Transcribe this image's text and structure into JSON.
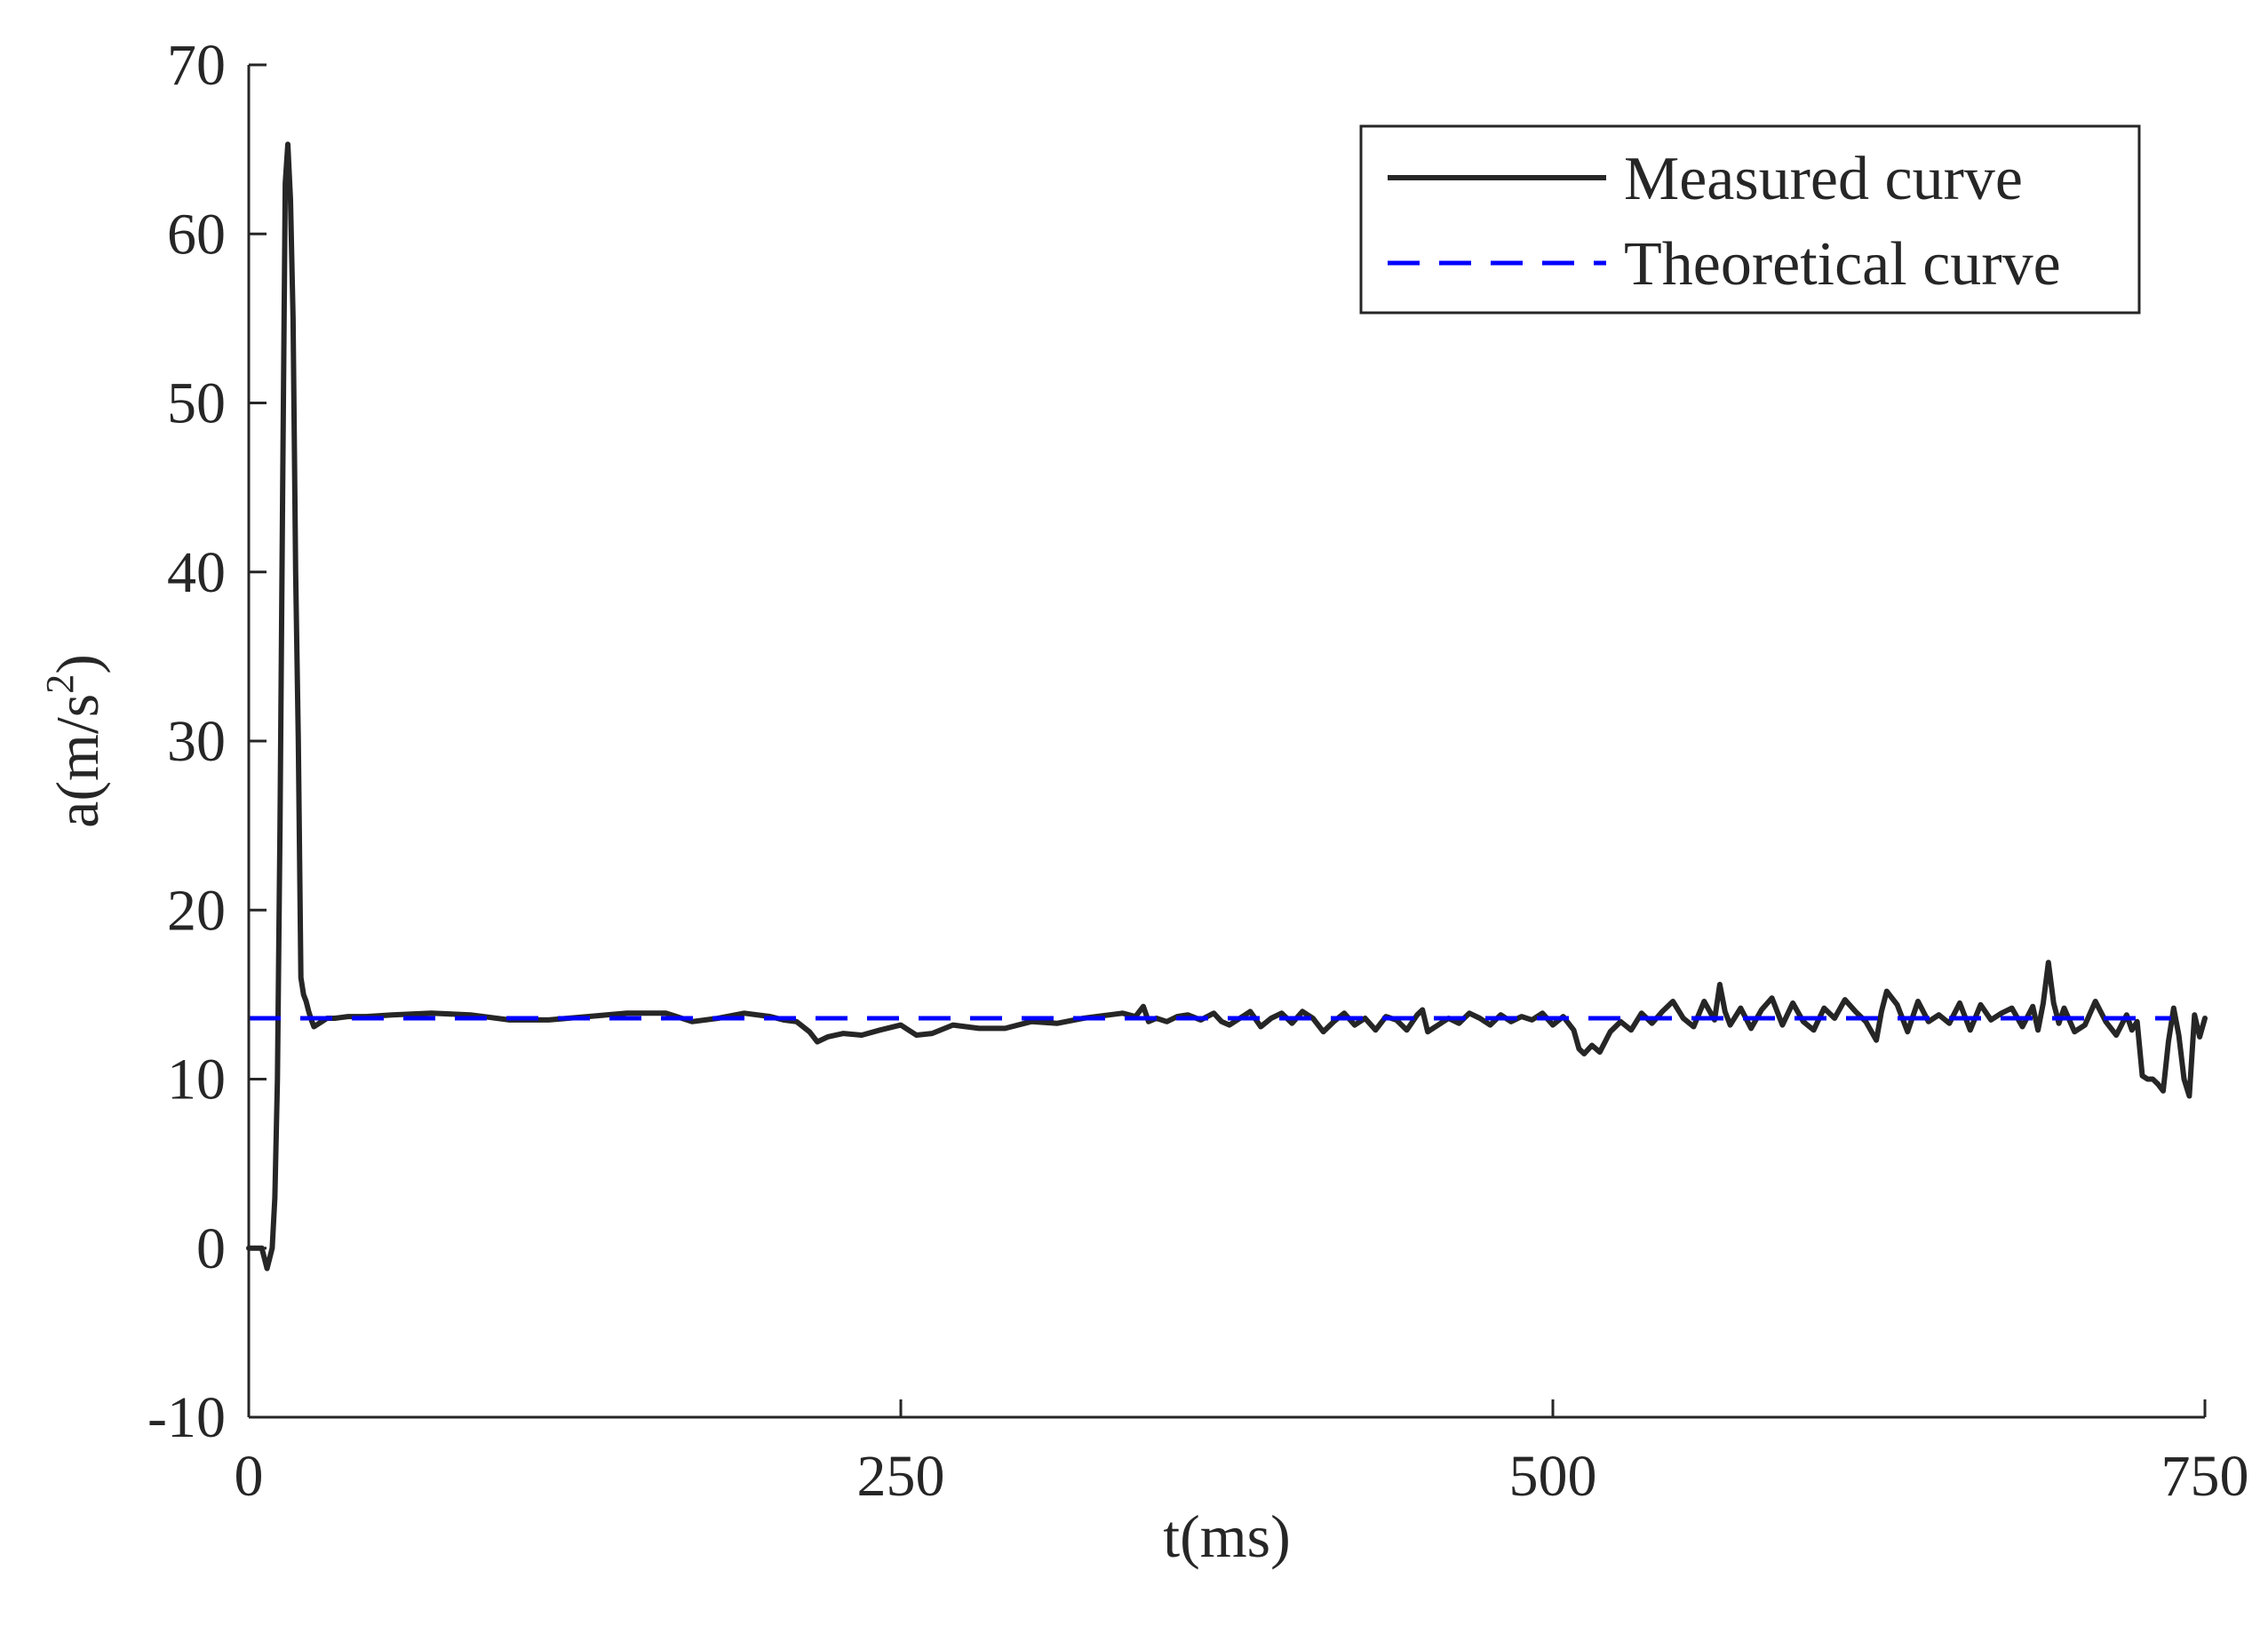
{
  "chart_data": {
    "type": "line",
    "title": "",
    "xlabel": "t(ms)",
    "ylabel_base": "a(m/s",
    "ylabel_sup": "2",
    "ylabel_close": ")",
    "xlim": [
      0,
      750
    ],
    "ylim": [
      -10,
      70
    ],
    "xticks": [
      0,
      250,
      500,
      750
    ],
    "xtick_labels": [
      "0",
      "250",
      "500",
      "750"
    ],
    "yticks": [
      -10,
      0,
      10,
      20,
      30,
      40,
      50,
      60,
      70
    ],
    "ytick_labels": [
      "-10",
      "0",
      "10",
      "20",
      "30",
      "40",
      "50",
      "60",
      "70"
    ],
    "grid": false,
    "legend_position": "top-right",
    "series": [
      {
        "name": "Measured curve",
        "style": "solid",
        "color": "#262626",
        "x": [
          0,
          5,
          7,
          9,
          10,
          11,
          12,
          13,
          14,
          15,
          16,
          17,
          18,
          19,
          20,
          21,
          22,
          23,
          24,
          25,
          26,
          28,
          30,
          33,
          38,
          45,
          55,
          70,
          85,
          100,
          115,
          130,
          145,
          160,
          170,
          180,
          190,
          200,
          205,
          210,
          215,
          218,
          222,
          228,
          235,
          242,
          250,
          256,
          262,
          270,
          280,
          290,
          300,
          310,
          320,
          330,
          335,
          340,
          343,
          345,
          348,
          352,
          356,
          360,
          365,
          370,
          373,
          376,
          380,
          384,
          388,
          392,
          396,
          400,
          404,
          408,
          412,
          416,
          420,
          424,
          428,
          432,
          436,
          440,
          444,
          448,
          450,
          452,
          456,
          460,
          464,
          468,
          472,
          476,
          480,
          484,
          488,
          492,
          496,
          500,
          504,
          508,
          510,
          512,
          515,
          518,
          522,
          526,
          530,
          534,
          538,
          542,
          546,
          550,
          554,
          558,
          562,
          564,
          566,
          568,
          572,
          576,
          580,
          584,
          588,
          592,
          596,
          600,
          604,
          608,
          612,
          616,
          620,
          624,
          626,
          628,
          632,
          636,
          640,
          644,
          648,
          652,
          656,
          660,
          664,
          668,
          672,
          676,
          680,
          684,
          686,
          688,
          690,
          692,
          694,
          696,
          700,
          704,
          708,
          712,
          716,
          720,
          722,
          724,
          726,
          728,
          730,
          732,
          734,
          736,
          738,
          740,
          742,
          744,
          746,
          748,
          750
        ],
        "y": [
          0,
          0,
          -1.2,
          0,
          3,
          10,
          25,
          45,
          63,
          65.3,
          62,
          55,
          40,
          30,
          16,
          15,
          14.6,
          14,
          13.5,
          13.1,
          13.2,
          13.4,
          13.6,
          13.6,
          13.7,
          13.7,
          13.8,
          13.9,
          13.8,
          13.5,
          13.5,
          13.7,
          13.9,
          13.9,
          13.4,
          13.6,
          13.9,
          13.7,
          13.5,
          13.4,
          12.8,
          12.2,
          12.5,
          12.7,
          12.6,
          12.9,
          13.2,
          12.6,
          12.7,
          13.2,
          13.0,
          13.0,
          13.4,
          13.3,
          13.6,
          13.8,
          13.9,
          13.7,
          14.3,
          13.4,
          13.6,
          13.4,
          13.7,
          13.8,
          13.5,
          13.9,
          13.4,
          13.2,
          13.6,
          14.0,
          13.1,
          13.6,
          13.9,
          13.3,
          14.0,
          13.6,
          12.8,
          13.4,
          13.9,
          13.2,
          13.6,
          12.9,
          13.7,
          13.5,
          12.9,
          13.8,
          14.1,
          12.8,
          13.2,
          13.6,
          13.3,
          13.9,
          13.6,
          13.2,
          13.8,
          13.4,
          13.7,
          13.5,
          13.9,
          13.2,
          13.7,
          12.9,
          11.8,
          11.5,
          12.0,
          11.6,
          12.8,
          13.4,
          12.9,
          13.9,
          13.3,
          14.0,
          14.6,
          13.6,
          13.1,
          14.6,
          13.5,
          15.6,
          14.0,
          13.2,
          14.2,
          13.0,
          14.1,
          14.8,
          13.2,
          14.5,
          13.4,
          12.9,
          14.2,
          13.6,
          14.7,
          14.0,
          13.4,
          12.3,
          14.0,
          15.2,
          14.4,
          12.8,
          14.6,
          13.4,
          13.8,
          13.3,
          14.5,
          12.9,
          14.4,
          13.5,
          13.9,
          14.2,
          13.1,
          14.3,
          12.9,
          14.5,
          16.9,
          14.5,
          13.3,
          14.2,
          12.8,
          13.2,
          14.6,
          13.4,
          12.6,
          13.8,
          12.9,
          13.4,
          10.2,
          10.0,
          10.0,
          9.7,
          9.3,
          12.2,
          14.2,
          12.6,
          10.0,
          9.0,
          13.8,
          12.5,
          13.6
        ]
      },
      {
        "name": "Theoretical curve",
        "style": "dashed",
        "color": "#0000ff",
        "x": [
          0,
          737
        ],
        "y": [
          13.6,
          13.6
        ]
      }
    ]
  }
}
